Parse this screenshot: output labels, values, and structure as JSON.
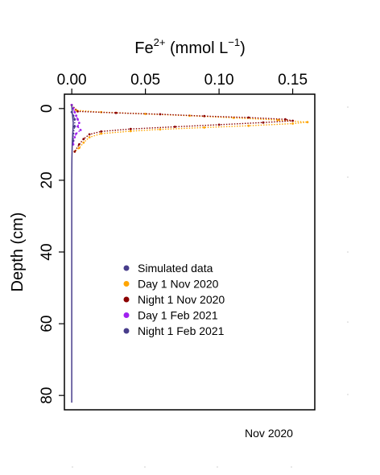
{
  "chart_data": {
    "type": "scatter",
    "title_parts": [
      "Fe",
      "2+",
      " (mmol L",
      "−1",
      ")"
    ],
    "xlabel": "",
    "ylabel": "Depth (cm)",
    "xlim": [
      -0.005,
      0.165
    ],
    "ylim": [
      -4,
      84
    ],
    "y_reversed": true,
    "x_axis_position": "top",
    "x_ticks": [
      0.0,
      0.05,
      0.1,
      0.15
    ],
    "x_tick_labels": [
      "0.00",
      "0.05",
      "0.10",
      "0.15"
    ],
    "y_ticks": [
      0,
      20,
      40,
      60,
      80
    ],
    "y_tick_labels": [
      "0",
      "20",
      "40",
      "60",
      "80"
    ],
    "footer_text": "Nov 2020",
    "grid": false,
    "legend_position": "center-left",
    "legend": [
      {
        "label": "Simulated data",
        "color": "#483d8b"
      },
      {
        "label": "Day 1 Nov 2020",
        "color": "#ffa500"
      },
      {
        "label": "Night 1 Nov 2020",
        "color": "#8b0000"
      },
      {
        "label": "Day 1 Feb 2021",
        "color": "#a020f0"
      },
      {
        "label": "Night 1 Feb 2021",
        "color": "#483d8b"
      }
    ],
    "series": [
      {
        "name": "Day 1 Nov 2020",
        "color": "#ffa500",
        "points": [
          [
            0.0,
            -1
          ],
          [
            0.003,
            0.5
          ],
          [
            0.02,
            1.0
          ],
          [
            0.05,
            1.5
          ],
          [
            0.08,
            2.0
          ],
          [
            0.11,
            2.6
          ],
          [
            0.14,
            3.2
          ],
          [
            0.16,
            3.8
          ],
          [
            0.15,
            4.2
          ],
          [
            0.12,
            4.8
          ],
          [
            0.09,
            5.3
          ],
          [
            0.06,
            5.8
          ],
          [
            0.04,
            6.3
          ],
          [
            0.02,
            7.0
          ],
          [
            0.012,
            8.0
          ],
          [
            0.008,
            9.5
          ],
          [
            0.005,
            11
          ],
          [
            0.002,
            12
          ]
        ]
      },
      {
        "name": "Night 1 Nov 2020",
        "color": "#8b0000",
        "points": [
          [
            0.0,
            -1
          ],
          [
            0.004,
            0.8
          ],
          [
            0.03,
            1.2
          ],
          [
            0.06,
            1.6
          ],
          [
            0.09,
            2.1
          ],
          [
            0.12,
            2.5
          ],
          [
            0.145,
            3.0
          ],
          [
            0.15,
            3.4
          ],
          [
            0.13,
            3.9
          ],
          [
            0.1,
            4.5
          ],
          [
            0.07,
            5.1
          ],
          [
            0.04,
            5.7
          ],
          [
            0.02,
            6.4
          ],
          [
            0.012,
            7.2
          ],
          [
            0.008,
            8.5
          ],
          [
            0.005,
            10
          ],
          [
            0.002,
            12
          ]
        ]
      },
      {
        "name": "Day 1 Feb 2021",
        "color": "#a020f0",
        "points": [
          [
            0.0,
            -1
          ],
          [
            0.001,
            0
          ],
          [
            0.002,
            1
          ],
          [
            0.003,
            2
          ],
          [
            0.004,
            3
          ],
          [
            0.005,
            4
          ],
          [
            0.004,
            5
          ],
          [
            0.006,
            6
          ],
          [
            0.003,
            7
          ],
          [
            0.002,
            8
          ],
          [
            0.001,
            9
          ],
          [
            0.001,
            10
          ]
        ]
      },
      {
        "name": "Night 1 Feb 2021",
        "color": "#483d8b",
        "points": [
          [
            0.0,
            1
          ],
          [
            0.001,
            2
          ],
          [
            0.002,
            3
          ],
          [
            0.002,
            5
          ],
          [
            0.001,
            7
          ],
          [
            0.001,
            9
          ]
        ]
      },
      {
        "name": "Simulated data",
        "color": "#483d8b",
        "line": true,
        "points": [
          [
            0.0,
            -1
          ],
          [
            0.0005,
            2
          ],
          [
            0.001,
            4
          ],
          [
            0.0008,
            6
          ],
          [
            0.0005,
            8
          ],
          [
            0.0003,
            10
          ],
          [
            0.0002,
            12
          ],
          [
            0.0001,
            14
          ],
          [
            0.0,
            20
          ],
          [
            0.0,
            40
          ],
          [
            0.0,
            60
          ],
          [
            0.0,
            82
          ]
        ]
      }
    ]
  }
}
